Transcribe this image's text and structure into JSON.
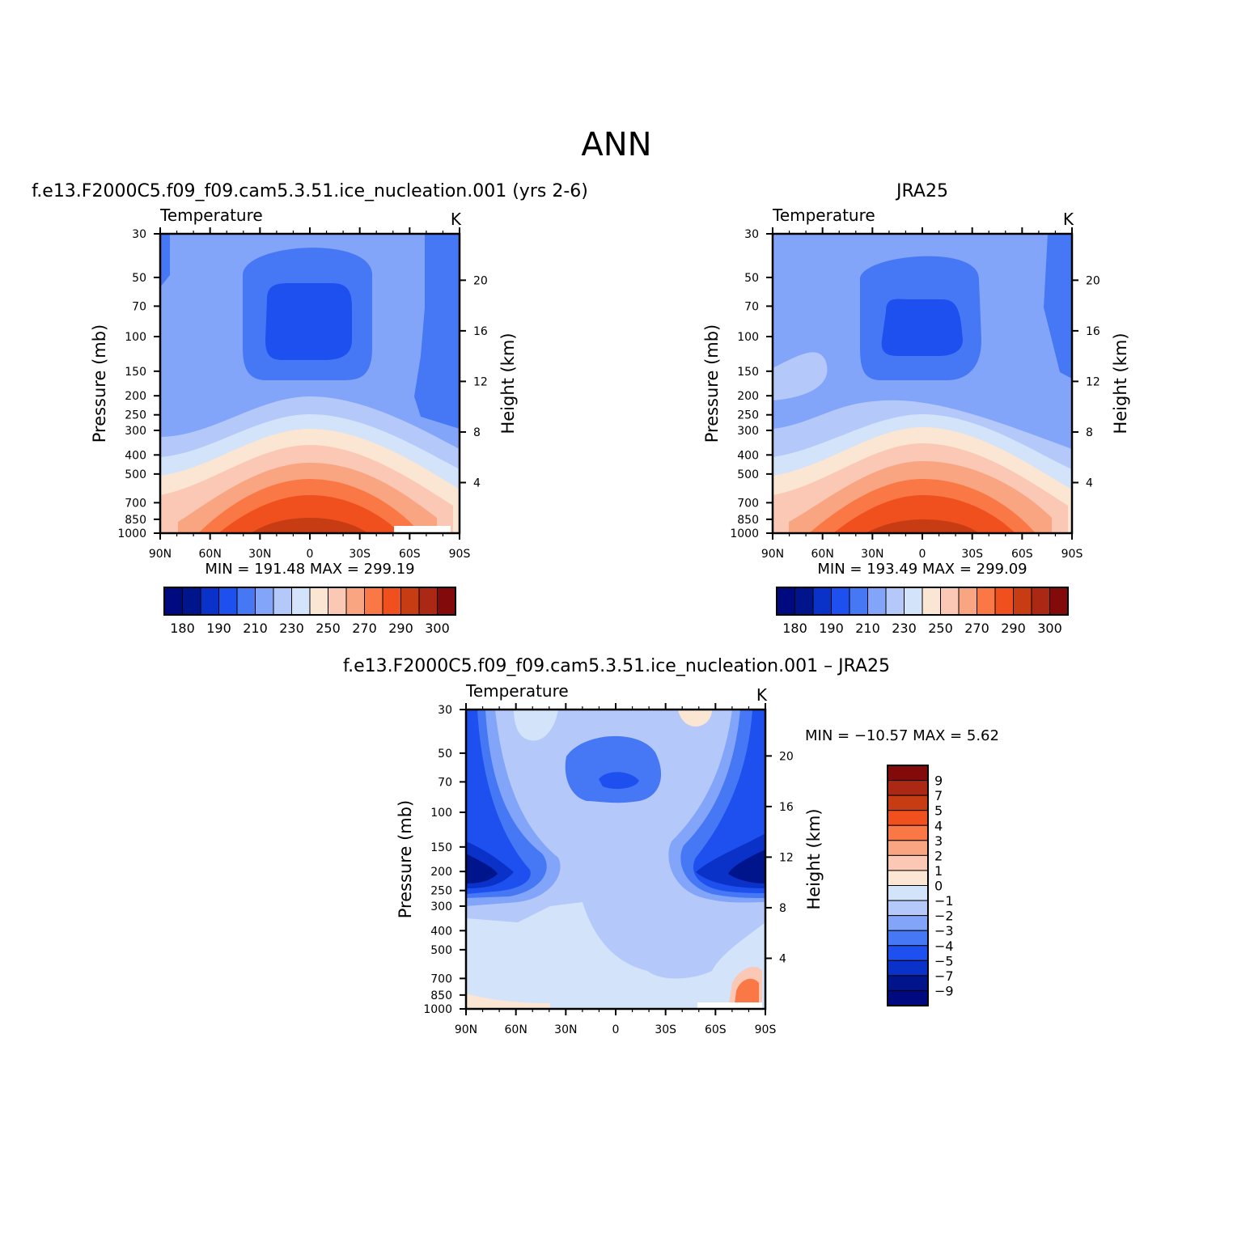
{
  "figure_title": "ANN",
  "colors": {
    "abs_scale": [
      "#000a80",
      "#00148c",
      "#0a32c8",
      "#1e50f0",
      "#4678f5",
      "#82a5fa",
      "#b4c8fa",
      "#d2e3fa",
      "#fae6d2",
      "#fac8b4",
      "#faa582",
      "#fa7846",
      "#f0501e",
      "#c83c14",
      "#aa2814",
      "#820a0a"
    ],
    "diff_scale": [
      "#000a80",
      "#00148c",
      "#0a32c8",
      "#1e50f0",
      "#4678f5",
      "#82a5fa",
      "#b4c8fa",
      "#d2e3fa",
      "#fae6d2",
      "#fac8b4",
      "#faa582",
      "#fa7846",
      "#f0501e",
      "#c83c14",
      "#aa2814",
      "#820a0a"
    ]
  },
  "chart_data": [
    {
      "type": "heatmap",
      "title": "f.e13.F2000C5.f09_f09.cam5.3.51.ice_nucleation.001 (yrs 2-6)",
      "subtitle_left": "Temperature",
      "subtitle_right": "K",
      "ylabel": "Pressure (mb)",
      "y2label": "Height (km)",
      "x_ticks": [
        "90N",
        "60N",
        "30N",
        "0",
        "30S",
        "60S",
        "90S"
      ],
      "y_ticks": [
        "30",
        "50",
        "70",
        "100",
        "150",
        "200",
        "250",
        "300",
        "400",
        "500",
        "700",
        "850",
        "1000"
      ],
      "y2_ticks": [
        "20",
        "16",
        "12",
        "8",
        "4"
      ],
      "ylim": [
        1000,
        30
      ],
      "xlim": [
        "90N",
        "90S"
      ],
      "min_max": "MIN = 191.48   MAX = 299.19",
      "colorbar_labels": [
        "180",
        "190",
        "210",
        "230",
        "250",
        "270",
        "290",
        "300"
      ]
    },
    {
      "type": "heatmap",
      "title": "JRA25",
      "subtitle_left": "Temperature",
      "subtitle_right": "K",
      "ylabel": "Pressure (mb)",
      "y2label": "Height (km)",
      "x_ticks": [
        "90N",
        "60N",
        "30N",
        "0",
        "30S",
        "60S",
        "90S"
      ],
      "y_ticks": [
        "30",
        "50",
        "70",
        "100",
        "150",
        "200",
        "250",
        "300",
        "400",
        "500",
        "700",
        "850",
        "1000"
      ],
      "y2_ticks": [
        "20",
        "16",
        "12",
        "8",
        "4"
      ],
      "ylim": [
        1000,
        30
      ],
      "xlim": [
        "90N",
        "90S"
      ],
      "min_max": "MIN = 193.49   MAX = 299.09",
      "colorbar_labels": [
        "180",
        "190",
        "210",
        "230",
        "250",
        "270",
        "290",
        "300"
      ]
    },
    {
      "type": "heatmap",
      "title": "f.e13.F2000C5.f09_f09.cam5.3.51.ice_nucleation.001 – JRA25",
      "subtitle_left": "Temperature",
      "subtitle_right": "K",
      "ylabel": "Pressure (mb)",
      "y2label": "Height (km)",
      "x_ticks": [
        "90N",
        "60N",
        "30N",
        "0",
        "30S",
        "60S",
        "90S"
      ],
      "y_ticks": [
        "30",
        "50",
        "70",
        "100",
        "150",
        "200",
        "250",
        "300",
        "400",
        "500",
        "700",
        "850",
        "1000"
      ],
      "y2_ticks": [
        "20",
        "16",
        "12",
        "8",
        "4"
      ],
      "ylim": [
        1000,
        30
      ],
      "xlim": [
        "90N",
        "90S"
      ],
      "min_max": "MIN = −10.57   MAX =    5.62",
      "colorbar_labels": [
        "9",
        "7",
        "5",
        "4",
        "3",
        "2",
        "1",
        "0",
        "−1",
        "−2",
        "−3",
        "−4",
        "−5",
        "−7",
        "−9"
      ]
    }
  ]
}
